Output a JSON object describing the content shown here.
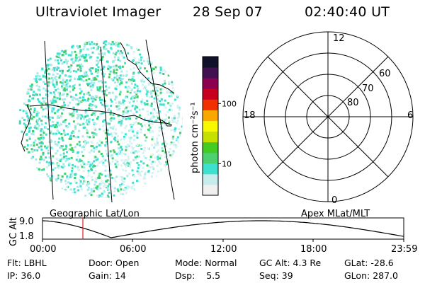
{
  "header": {
    "instrument": "Ultraviolet Imager",
    "date": "28 Sep 07",
    "time": "02:40:40 UT"
  },
  "map_panel": {
    "label": "Geographic Lat/Lon"
  },
  "colorbar": {
    "label": "photon cm⁻²s⁻¹",
    "ticks": [
      {
        "value": 10,
        "label": "10"
      },
      {
        "value": 100,
        "label": "100"
      }
    ],
    "range": [
      3,
      600
    ],
    "scale": "log",
    "colors": [
      "#f0f0f0",
      "#c8ecec",
      "#40e0d0",
      "#4cd070",
      "#44cc22",
      "#c8e000",
      "#f8f800",
      "#f8a800",
      "#f03000",
      "#c80020",
      "#8c0050",
      "#401050",
      "#10102a"
    ]
  },
  "polar_panel": {
    "label": "Apex MLat/MLT",
    "mlt_labels": [
      "12",
      "18",
      "6",
      "0"
    ],
    "lat_labels": [
      "60",
      "70",
      "80"
    ]
  },
  "altitude_plot": {
    "ylabel": "GC Alt",
    "ytick_labels": [
      "9.0",
      "1.8"
    ],
    "xtick_labels": [
      "00:00",
      "06:00",
      "12:00",
      "18:00",
      "23:59"
    ],
    "marker_time": "02:40"
  },
  "info": {
    "row1": [
      {
        "key": "Flt:",
        "value": "LBHL"
      },
      {
        "key": "Door:",
        "value": "Open"
      },
      {
        "key": "Mode:",
        "value": "Normal"
      },
      {
        "key": "GC Alt:",
        "value": "4.3 Re"
      },
      {
        "key": "GLat:",
        "value": "-28.6"
      }
    ],
    "row2": [
      {
        "key": "IP:",
        "value": "36.0"
      },
      {
        "key": "Gain:",
        "value": "14"
      },
      {
        "key": "Dsp:",
        "value": "5.5"
      },
      {
        "key": "Seq:",
        "value": "39"
      },
      {
        "key": "GLon:",
        "value": "287.0"
      }
    ]
  }
}
